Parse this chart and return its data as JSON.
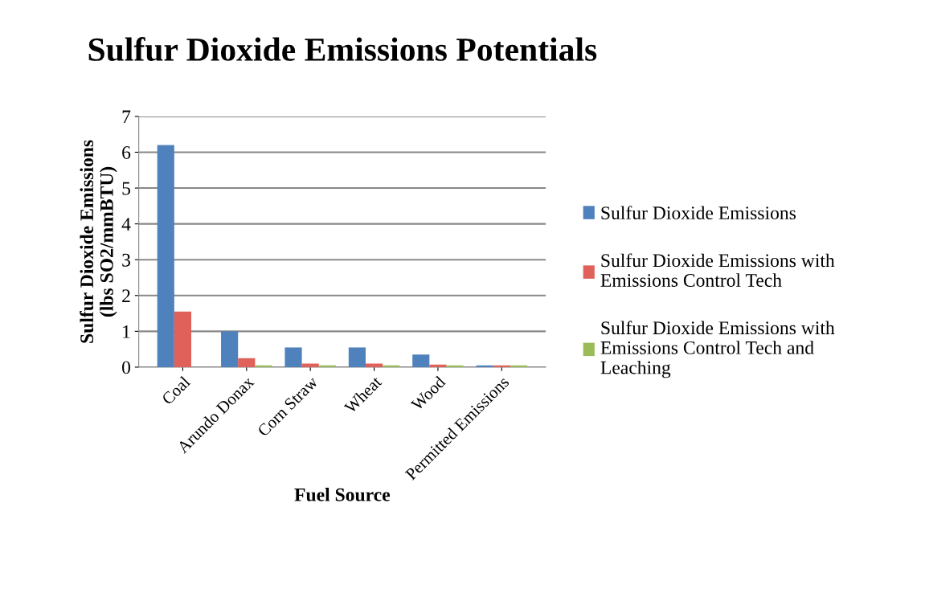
{
  "chart_data": {
    "type": "bar",
    "title": "Sulfur Dioxide Emissions Potentials",
    "xlabel": "Fuel Source",
    "ylabel": "Sulfur Dioxide Emissions\n(lbs SO2/mmBTU)",
    "categories": [
      "Coal",
      "Arundo Donax",
      "Corn Straw",
      "Wheat",
      "Wood",
      "Permitted Emissions"
    ],
    "series": [
      {
        "name": "Sulfur Dioxide Emissions",
        "color": "#4f81bd",
        "values": [
          6.2,
          1.0,
          0.55,
          0.55,
          0.35,
          0.05
        ]
      },
      {
        "name": "Sulfur Dioxide Emissions with Emissions Control Tech",
        "color": "#e0605a",
        "values": [
          1.55,
          0.25,
          0.1,
          0.1,
          0.07,
          0.05
        ]
      },
      {
        "name": "Sulfur Dioxide Emissions with Emissions Control Tech and Leaching",
        "color": "#9bbb59",
        "values": [
          null,
          0.05,
          0.05,
          0.05,
          0.05,
          0.05
        ]
      }
    ],
    "ylim": [
      0,
      7
    ],
    "yticks": [
      0,
      1,
      2,
      3,
      4,
      5,
      6,
      7
    ],
    "grid": "y",
    "legend": "right"
  }
}
